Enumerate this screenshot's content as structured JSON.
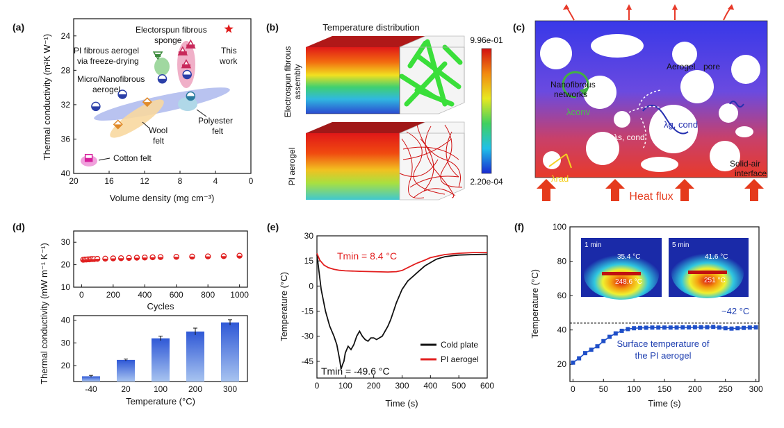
{
  "panel_labels": {
    "a": "(a)",
    "b": "(b)",
    "c": "(c)",
    "d": "(d)",
    "e": "(e)",
    "f": "(f)"
  },
  "panel_a": {
    "ylabel": "Thermal conductivity (m²K W⁻¹)",
    "xlabel": "Volume density (mg cm⁻³)",
    "labels": {
      "electrospun_1": "Electorspun fibrous",
      "electrospun_2": "sponge",
      "pi_fd_1": "PI fibrous aerogel",
      "pi_fd_2": "via freeze-drying",
      "micro_1": "Micro/Nanofibrous",
      "micro_2": "aerogel",
      "poly_1": "Polyester",
      "poly_2": "felt",
      "wool_1": "Wool",
      "wool_2": "felt",
      "cotton": "Cotton felt",
      "this_1": "This",
      "this_2": "work"
    }
  },
  "panel_b": {
    "title": "Temperature distribution",
    "top_label_1": "Electrospun fibrous",
    "top_label_2": "assembly",
    "bottom_label": "PI aerogel",
    "cbar_max": "9.96e-01",
    "cbar_min": "2.20e-04"
  },
  "panel_c": {
    "aerogel": "Aerogel",
    "pore": "pore",
    "networks_1": "Nanofibrous",
    "networks_2": "networks",
    "lambda_conv": "λconv",
    "lambda_g": "λg, cond",
    "lambda_s": "λs, cond",
    "lambda_rad": "λrad",
    "solid_air_1": "Solid-air",
    "solid_air_2": "interface",
    "heat_flux": "Heat flux"
  },
  "panel_d": {
    "ylabel": "Thermal conductivity (mW m⁻¹ K⁻¹)",
    "top_xlabel": "Cycles",
    "bottom_xlabel": "Temperature (°C)"
  },
  "panel_e": {
    "annot_pi": "Tmin = 8.4 °C",
    "annot_cold": "Tmin = -49.6 °C"
  },
  "panel_f": {
    "inset1_time": "1 min",
    "inset1_t1": "35.4 °C",
    "inset1_t2": "248.6 °C",
    "inset2_time": "5 min",
    "inset2_t1": "41.6 °C",
    "inset2_t2": "251 °C",
    "plateau": "~42 °C",
    "caption_1": "Surface temperature of",
    "caption_2": "the PI aerogel"
  },
  "chart_data": [
    {
      "id": "a",
      "type": "scatter",
      "xlabel": "Volume density (mg cm⁻³)",
      "ylabel": "Thermal conductivity (m²K W⁻¹)",
      "xlim": [
        20,
        0
      ],
      "ylim": [
        40,
        22
      ],
      "xticks": [
        20,
        16,
        12,
        8,
        4,
        0
      ],
      "yticks": [
        24,
        28,
        32,
        36,
        40
      ],
      "series": [
        {
          "name": "Micro/Nanofibrous aerogel",
          "color": "#2b3fa8",
          "x": [
            17.5,
            14.5,
            10,
            7.2
          ],
          "y": [
            32.2,
            30.8,
            29,
            28.5
          ]
        },
        {
          "name": "Wool felt",
          "color": "#e08a2a",
          "x": [
            15,
            11.7
          ],
          "y": [
            34.3,
            31.7
          ]
        },
        {
          "name": "Polyester felt",
          "color": "#2a7a9e",
          "x": [
            6.8
          ],
          "y": [
            31
          ]
        },
        {
          "name": "Cotton felt",
          "color": "#d61f9c",
          "x": [
            18.3
          ],
          "y": [
            38.2
          ]
        },
        {
          "name": "PI fibrous aerogel via freeze-drying",
          "color": "#3a8a3a",
          "x": [
            10.5
          ],
          "y": [
            26.2
          ]
        },
        {
          "name": "Electorspun fibrous sponge",
          "color": "#c8285a",
          "x": [
            7.3,
            6.8,
            7.7
          ],
          "y": [
            27.3,
            25,
            25.8
          ]
        },
        {
          "name": "This work",
          "color": "#e01b1b",
          "x": [
            2.5
          ],
          "y": [
            23.2
          ]
        }
      ]
    },
    {
      "id": "d-top",
      "type": "scatter",
      "xlabel": "Cycles",
      "ylabel": "Thermal conductivity (mW m⁻¹ K⁻¹)",
      "xlim": [
        -50,
        1050
      ],
      "ylim": [
        10,
        35
      ],
      "xticks": [
        0,
        200,
        400,
        600,
        800,
        1000
      ],
      "yticks": [
        10,
        20,
        30
      ],
      "x": [
        10,
        20,
        30,
        40,
        50,
        60,
        70,
        80,
        100,
        150,
        200,
        250,
        300,
        350,
        400,
        450,
        500,
        600,
        700,
        800,
        900,
        1000
      ],
      "y": [
        22.2,
        22.3,
        22.3,
        22.4,
        22.4,
        22.5,
        22.5,
        22.5,
        22.6,
        22.7,
        22.8,
        22.9,
        23.0,
        23.1,
        23.2,
        23.3,
        23.4,
        23.5,
        23.6,
        23.7,
        23.8,
        24.0
      ]
    },
    {
      "id": "d-bottom",
      "type": "bar",
      "xlabel": "Temperature (°C)",
      "ylim": [
        13,
        42
      ],
      "yticks": [
        20,
        30,
        40
      ],
      "categories": [
        "-40",
        "20",
        "100",
        "200",
        "300"
      ],
      "values": [
        15.3,
        22.5,
        32,
        35,
        39
      ],
      "errors": [
        0.4,
        0.4,
        1.0,
        1.5,
        1.2
      ]
    },
    {
      "id": "e",
      "type": "line",
      "xlabel": "Time (s)",
      "ylabel": "Temperature (°C)",
      "xlim": [
        0,
        600
      ],
      "ylim": [
        -55,
        30
      ],
      "xticks": [
        0,
        100,
        200,
        300,
        400,
        500,
        600
      ],
      "yticks": [
        30,
        15,
        0,
        -15,
        -30,
        -45
      ],
      "legend": "bottom-right",
      "series": [
        {
          "name": "Cold plate",
          "color": "#111111",
          "x": [
            0,
            5,
            15,
            30,
            45,
            60,
            70,
            80,
            85,
            90,
            95,
            100,
            110,
            120,
            130,
            140,
            150,
            160,
            170,
            180,
            190,
            200,
            210,
            220,
            230,
            240,
            250,
            260,
            270,
            280,
            290,
            300,
            320,
            340,
            360,
            380,
            400,
            420,
            450,
            480,
            500,
            550,
            600
          ],
          "y": [
            19,
            12,
            -2,
            -15,
            -24,
            -30,
            -35,
            -44,
            -49.6,
            -47,
            -45,
            -40,
            -36,
            -38,
            -35,
            -30,
            -27,
            -30,
            -32,
            -33,
            -31,
            -31,
            -32,
            -31,
            -30,
            -27,
            -24,
            -20,
            -15,
            -10,
            -6,
            -2,
            3,
            6,
            9,
            12,
            14,
            16,
            17.5,
            18.2,
            18.5,
            18.8,
            19
          ]
        },
        {
          "name": "PI aerogel",
          "color": "#e21e1e",
          "x": [
            0,
            10,
            25,
            40,
            60,
            80,
            100,
            150,
            200,
            250,
            280,
            300,
            320,
            350,
            380,
            400,
            450,
            500,
            550,
            600
          ],
          "y": [
            19.5,
            15.5,
            12.5,
            11,
            10,
            9.4,
            9.1,
            8.8,
            8.6,
            8.4,
            8.6,
            9.3,
            11,
            13.5,
            15.5,
            17,
            18.8,
            19.6,
            20,
            20
          ]
        }
      ]
    },
    {
      "id": "f",
      "type": "line",
      "xlabel": "Time (s)",
      "ylabel": "Temperature (°C)",
      "xlim": [
        0,
        300
      ],
      "ylim": [
        10,
        100
      ],
      "xticks": [
        0,
        50,
        100,
        150,
        200,
        250,
        300
      ],
      "yticks": [
        20,
        40,
        60,
        80,
        100
      ],
      "reference_line": 44,
      "series": [
        {
          "name": "Surface temperature of the PI aerogel",
          "color": "#1f4fc8",
          "x": [
            0,
            10,
            20,
            30,
            40,
            50,
            60,
            70,
            80,
            90,
            100,
            110,
            120,
            130,
            140,
            150,
            160,
            170,
            180,
            190,
            200,
            210,
            220,
            230,
            240,
            250,
            260,
            270,
            280,
            290,
            300
          ],
          "y": [
            21,
            23.5,
            26.5,
            28.5,
            30.5,
            33.5,
            36,
            38,
            39.5,
            40.5,
            41,
            41.2,
            41.3,
            41.4,
            41.4,
            41.4,
            41.4,
            41.4,
            41.5,
            41.5,
            41.6,
            41.6,
            41.6,
            41.8,
            41.4,
            41,
            40.8,
            41,
            41.2,
            41.4,
            41.5
          ]
        }
      ]
    }
  ]
}
